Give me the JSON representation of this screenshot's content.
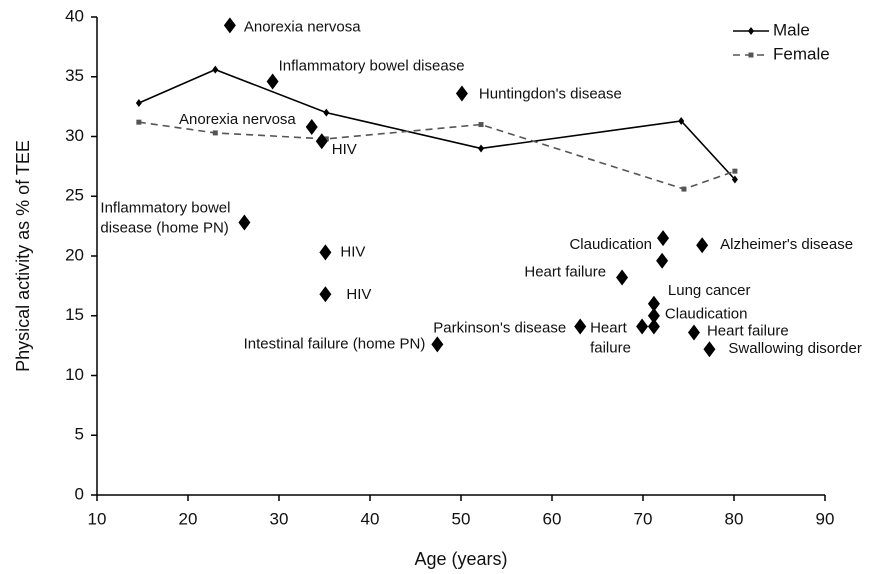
{
  "chart_data": [
    {
      "type": "line",
      "xlabel": "Age (years)",
      "ylabel": "Physical activity as % of TEE",
      "xlim": [
        10,
        90
      ],
      "ylim": [
        0,
        40
      ],
      "xticks": [
        10,
        20,
        30,
        40,
        50,
        60,
        70,
        80,
        90
      ],
      "yticks": [
        0,
        5,
        10,
        15,
        20,
        25,
        30,
        35,
        40
      ],
      "legend": "upper right",
      "series": [
        {
          "name": "Male",
          "color": "#000000",
          "dash": "solid",
          "marker": "diamond",
          "x": [
            14.6,
            23.0,
            35.2,
            52.2,
            74.2,
            80.1
          ],
          "values": [
            32.8,
            35.6,
            32.0,
            29.0,
            31.3,
            26.4
          ]
        },
        {
          "name": "Female",
          "color": "#555555",
          "dash": "dashed",
          "marker": "square",
          "x": [
            14.6,
            23.0,
            35.2,
            52.2,
            74.5,
            80.1
          ],
          "values": [
            31.2,
            30.3,
            29.8,
            31.0,
            25.6,
            27.1
          ]
        }
      ]
    },
    {
      "type": "scatter",
      "color": "#000000",
      "x": [
        24.6,
        29.3,
        50.1,
        33.6,
        34.7,
        26.2,
        35.1,
        35.1,
        47.4,
        63.1,
        69.9,
        71.2,
        71.2,
        71.2,
        67.7,
        72.2,
        72.1,
        76.5,
        75.6,
        77.3
      ],
      "values": [
        39.3,
        34.6,
        33.6,
        30.8,
        29.6,
        22.8,
        20.3,
        16.8,
        12.6,
        14.1,
        14.1,
        15.0,
        14.1,
        16.0,
        18.2,
        21.5,
        19.6,
        20.9,
        13.6,
        12.2
      ],
      "labels": [
        [
          "Anorexia nervosa"
        ],
        [
          "Inflammatory bowel disease"
        ],
        [
          "Huntingdon's disease"
        ],
        [
          "Anorexia nervosa"
        ],
        [
          "HIV"
        ],
        [
          "Inflammatory bowel",
          "disease (home PN)"
        ],
        [
          "HIV"
        ],
        [
          "HIV"
        ],
        [
          "Intestinal failure (home PN)"
        ],
        [
          "Parkinson's disease"
        ],
        [
          "Heart",
          "failure"
        ],
        [
          "Claudication"
        ],
        null,
        [
          "Lung cancer"
        ],
        [
          "Heart failure"
        ],
        [
          "Claudication"
        ],
        null,
        [
          "Alzheimer's disease"
        ],
        [
          "Heart failure"
        ],
        [
          "Swallowing disorder"
        ]
      ]
    }
  ]
}
